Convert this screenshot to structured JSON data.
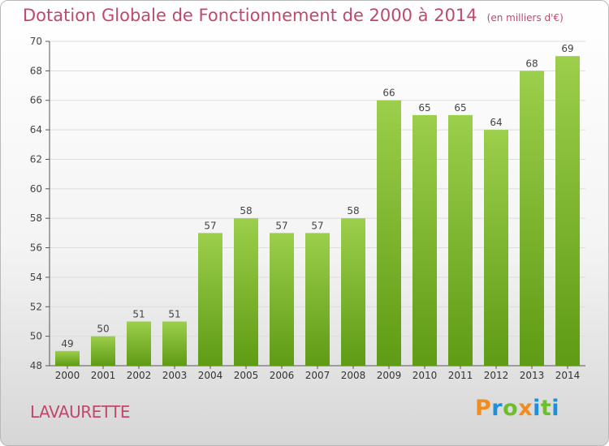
{
  "header": {
    "title": "Dotation Globale de Fonctionnement de 2000 à 2014",
    "unit": "(en milliers d'€)"
  },
  "footer": {
    "commune": "LAVAURETTE",
    "logo": "Proxiti"
  },
  "colors": {
    "title": "#c0496b",
    "bar_light": "#9ccf4b",
    "bar_dark": "#5f9b14",
    "grid": "#dddddd"
  },
  "chart_data": {
    "type": "bar",
    "title": "Dotation Globale de Fonctionnement de 2000 à 2014",
    "subtitle": "(en milliers d'€)",
    "xlabel": "",
    "ylabel": "",
    "categories": [
      "2000",
      "2001",
      "2002",
      "2003",
      "2004",
      "2005",
      "2006",
      "2007",
      "2008",
      "2009",
      "2010",
      "2011",
      "2012",
      "2013",
      "2014"
    ],
    "values": [
      49,
      50,
      51,
      51,
      57,
      58,
      57,
      57,
      58,
      66,
      65,
      65,
      64,
      68,
      69
    ],
    "ylim": [
      48,
      70
    ],
    "yticks": [
      48,
      50,
      52,
      54,
      56,
      58,
      60,
      62,
      64,
      66,
      68,
      70
    ],
    "grid": true,
    "legend": "none"
  }
}
